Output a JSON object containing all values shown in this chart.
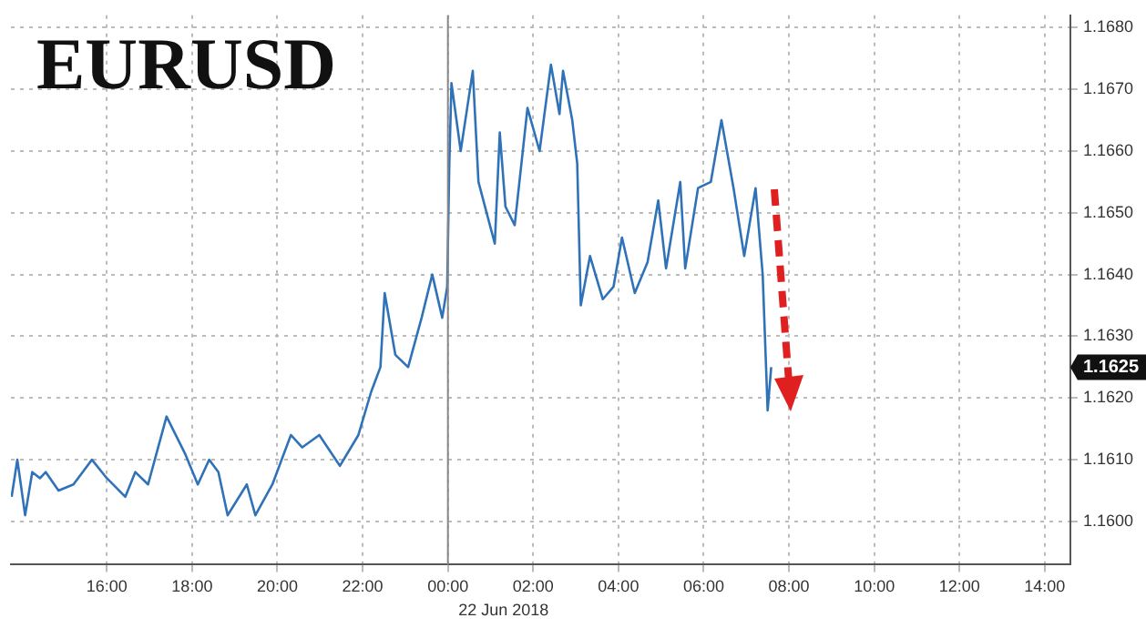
{
  "chart_data": {
    "type": "line",
    "title": "EURUSD",
    "x": [
      "2018-06-21T13:46",
      "2018-06-21T13:54",
      "2018-06-21T14:05",
      "2018-06-21T14:15",
      "2018-06-21T14:26",
      "2018-06-21T14:34",
      "2018-06-21T14:52",
      "2018-06-21T15:13",
      "2018-06-21T15:39",
      "2018-06-21T16:00",
      "2018-06-21T16:26",
      "2018-06-21T16:40",
      "2018-06-21T16:58",
      "2018-06-21T17:24",
      "2018-06-21T17:50",
      "2018-06-21T18:08",
      "2018-06-21T18:24",
      "2018-06-21T18:37",
      "2018-06-21T18:50",
      "2018-06-21T19:17",
      "2018-06-21T19:29",
      "2018-06-21T19:53",
      "2018-06-21T20:19",
      "2018-06-21T20:35",
      "2018-06-21T20:59",
      "2018-06-21T21:28",
      "2018-06-21T21:54",
      "2018-06-21T22:12",
      "2018-06-21T22:25",
      "2018-06-21T22:31",
      "2018-06-21T22:46",
      "2018-06-21T23:04",
      "2018-06-21T23:23",
      "2018-06-21T23:38",
      "2018-06-21T23:52",
      "2018-06-21T23:59",
      "2018-06-22T00:02",
      "2018-06-22T00:05",
      "2018-06-22T00:18",
      "2018-06-22T00:35",
      "2018-06-22T00:43",
      "2018-06-22T01:06",
      "2018-06-22T01:13",
      "2018-06-22T01:21",
      "2018-06-22T01:34",
      "2018-06-22T01:52",
      "2018-06-22T02:09",
      "2018-06-22T02:25",
      "2018-06-22T02:37",
      "2018-06-22T02:42",
      "2018-06-22T02:55",
      "2018-06-22T03:02",
      "2018-06-22T03:07",
      "2018-06-22T03:20",
      "2018-06-22T03:38",
      "2018-06-22T03:53",
      "2018-06-22T04:05",
      "2018-06-22T04:23",
      "2018-06-22T04:41",
      "2018-06-22T04:56",
      "2018-06-22T05:07",
      "2018-06-22T05:27",
      "2018-06-22T05:34",
      "2018-06-22T05:52",
      "2018-06-22T06:10",
      "2018-06-22T06:25",
      "2018-06-22T06:42",
      "2018-06-22T06:57",
      "2018-06-22T07:13",
      "2018-06-22T07:23",
      "2018-06-22T07:30",
      "2018-06-22T07:35"
    ],
    "series": [
      {
        "color": "#2f72b8",
        "values": [
          1.1604,
          1.161,
          1.1601,
          1.1608,
          1.1607,
          1.1608,
          1.1605,
          1.1606,
          1.161,
          1.1607,
          1.1604,
          1.1608,
          1.1606,
          1.1617,
          1.1611,
          1.1606,
          1.161,
          1.1608,
          1.1601,
          1.1606,
          1.1601,
          1.1606,
          1.1614,
          1.1612,
          1.1614,
          1.1609,
          1.1614,
          1.1621,
          1.1625,
          1.1637,
          1.1627,
          1.1625,
          1.1633,
          1.164,
          1.1633,
          1.1638,
          1.1658,
          1.1671,
          1.166,
          1.1673,
          1.1655,
          1.1645,
          1.1663,
          1.1651,
          1.1648,
          1.1667,
          1.166,
          1.1674,
          1.1666,
          1.1673,
          1.1665,
          1.1658,
          1.1635,
          1.1643,
          1.1636,
          1.1638,
          1.1646,
          1.1637,
          1.1642,
          1.1652,
          1.1641,
          1.1655,
          1.1641,
          1.1654,
          1.1655,
          1.1665,
          1.1654,
          1.1643,
          1.1654,
          1.164,
          1.1618,
          1.1625
        ]
      }
    ],
    "xlim": [
      "2018-06-21T13:45",
      "2018-06-22T14:36"
    ],
    "xticks": [
      {
        "value": "2018-06-21T16:00",
        "label": "16:00"
      },
      {
        "value": "2018-06-21T18:00",
        "label": "18:00"
      },
      {
        "value": "2018-06-21T20:00",
        "label": "20:00"
      },
      {
        "value": "2018-06-21T22:00",
        "label": "22:00"
      },
      {
        "value": "2018-06-22T00:00",
        "label": "00:00"
      },
      {
        "value": "2018-06-22T02:00",
        "label": "02:00"
      },
      {
        "value": "2018-06-22T04:00",
        "label": "04:00"
      },
      {
        "value": "2018-06-22T06:00",
        "label": "06:00"
      },
      {
        "value": "2018-06-22T08:00",
        "label": "08:00"
      },
      {
        "value": "2018-06-22T10:00",
        "label": "10:00"
      },
      {
        "value": "2018-06-22T12:00",
        "label": "12:00"
      },
      {
        "value": "2018-06-22T14:00",
        "label": "14:00"
      }
    ],
    "ylim": [
      1.1593,
      1.1682
    ],
    "yticks": [
      {
        "value": 1.16,
        "label": "1.1600"
      },
      {
        "value": 1.161,
        "label": "1.1610"
      },
      {
        "value": 1.162,
        "label": "1.1620"
      },
      {
        "value": 1.163,
        "label": "1.1630"
      },
      {
        "value": 1.164,
        "label": "1.1640"
      },
      {
        "value": 1.165,
        "label": "1.1650"
      },
      {
        "value": 1.166,
        "label": "1.1660"
      },
      {
        "value": 1.167,
        "label": "1.1670"
      },
      {
        "value": 1.168,
        "label": "1.1680"
      }
    ],
    "ref_lines": [
      {
        "axis": "x",
        "value": "2018-06-22T00:00",
        "color": "#888888"
      }
    ],
    "annotations": [
      "22 Jun 2018",
      "1.1625"
    ],
    "grid": true,
    "marker": "none",
    "line_style": "solid"
  }
}
